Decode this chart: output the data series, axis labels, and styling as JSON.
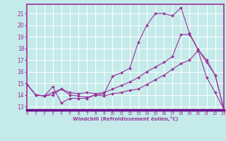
{
  "xlabel": "Windchill (Refroidissement éolien,°C)",
  "xlim": [
    0,
    23
  ],
  "ylim": [
    12.7,
    21.8
  ],
  "yticks": [
    13,
    14,
    15,
    16,
    17,
    18,
    19,
    20,
    21
  ],
  "xticks": [
    0,
    1,
    2,
    3,
    4,
    5,
    6,
    7,
    8,
    9,
    10,
    11,
    12,
    13,
    14,
    15,
    16,
    17,
    18,
    19,
    20,
    21,
    22,
    23
  ],
  "bg_color": "#c5eaea",
  "grid_color": "#ffffff",
  "line_color": "#993399",
  "spine_color": "#7700aa",
  "line1_x": [
    0,
    1,
    2,
    3,
    4,
    5,
    6,
    7,
    8,
    9,
    10,
    11,
    12,
    13,
    14,
    15,
    16,
    17,
    18,
    19,
    20,
    21,
    22,
    23
  ],
  "line1_y": [
    14.9,
    14.0,
    13.9,
    14.7,
    13.3,
    13.7,
    13.7,
    13.7,
    14.0,
    14.1,
    15.6,
    15.9,
    16.3,
    18.5,
    20.0,
    21.0,
    21.0,
    20.8,
    21.5,
    19.3,
    17.9,
    17.0,
    15.7,
    12.8
  ],
  "line2_x": [
    0,
    1,
    2,
    3,
    4,
    5,
    6,
    7,
    8,
    9,
    10,
    11,
    12,
    13,
    14,
    15,
    16,
    17,
    18,
    19,
    20,
    21,
    22,
    23
  ],
  "line2_y": [
    14.9,
    14.0,
    13.9,
    14.2,
    14.5,
    14.2,
    14.1,
    14.2,
    14.1,
    14.2,
    14.5,
    14.8,
    15.1,
    15.5,
    16.0,
    16.4,
    16.8,
    17.3,
    19.2,
    19.2,
    17.9,
    16.8,
    15.7,
    12.8
  ],
  "line3_x": [
    0,
    1,
    2,
    3,
    4,
    5,
    6,
    7,
    8,
    9,
    10,
    11,
    12,
    13,
    14,
    15,
    16,
    17,
    18,
    19,
    20,
    21,
    22,
    23
  ],
  "line3_y": [
    14.9,
    14.0,
    13.9,
    14.0,
    14.5,
    14.0,
    13.9,
    13.8,
    14.0,
    13.9,
    14.1,
    14.2,
    14.4,
    14.5,
    14.9,
    15.3,
    15.7,
    16.2,
    16.7,
    17.0,
    17.8,
    15.5,
    14.2,
    12.8
  ]
}
